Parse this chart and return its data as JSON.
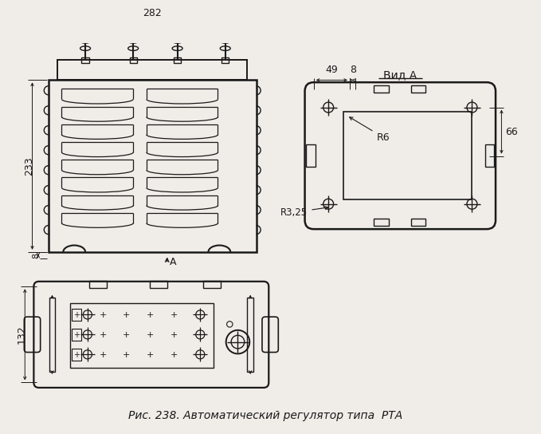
{
  "bg_color": "#f0ede8",
  "line_color": "#1a1a1a",
  "title": "Рис. 238. Автоматический регулятор типа  РТА",
  "dim_282": "282",
  "dim_233": "233",
  "dim_8": "8",
  "dim_49": "49",
  "dim_8b": "8",
  "dim_66": "66",
  "dim_132": "132",
  "dim_R6": "R6",
  "dim_R325": "R3,25",
  "label_vidA": "Вид А",
  "label_A": "A"
}
